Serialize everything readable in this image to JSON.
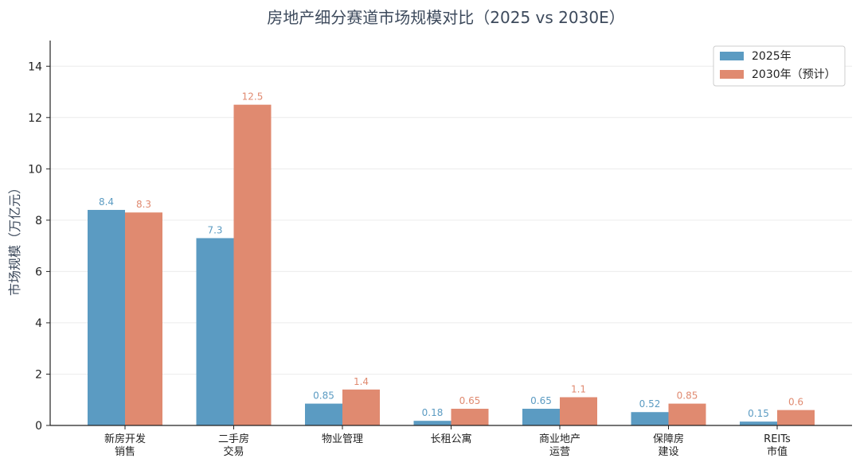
{
  "chart_data": {
    "type": "bar",
    "title": "房地产细分赛道市场规模对比（2025 vs 2030E）",
    "xlabel": "",
    "ylabel": "市场规模（万亿元）",
    "ylim": [
      0,
      15
    ],
    "yticks": [
      0,
      2,
      4,
      6,
      8,
      10,
      12,
      14
    ],
    "grid": "horizontal",
    "legend_position": "top-right",
    "categories": [
      [
        "新房开发",
        "销售"
      ],
      [
        "二手房",
        "交易"
      ],
      [
        "物业管理"
      ],
      [
        "长租公寓"
      ],
      [
        "商业地产",
        "运营"
      ],
      [
        "保障房",
        "建设"
      ],
      [
        "REITs",
        "市值"
      ]
    ],
    "series": [
      {
        "name": "2025年",
        "color": "#5b9bc2",
        "values": [
          8.4,
          7.3,
          0.85,
          0.18,
          0.65,
          0.52,
          0.15
        ],
        "labels": [
          "8.4",
          "7.3",
          "0.85",
          "0.18",
          "0.65",
          "0.52",
          "0.15"
        ]
      },
      {
        "name": "2030年（预计）",
        "color": "#e08a70",
        "values": [
          8.3,
          12.5,
          1.4,
          0.65,
          1.1,
          0.85,
          0.6
        ],
        "labels": [
          "8.3",
          "12.5",
          "1.4",
          "0.65",
          "1.1",
          "0.85",
          "0.6"
        ]
      }
    ]
  }
}
